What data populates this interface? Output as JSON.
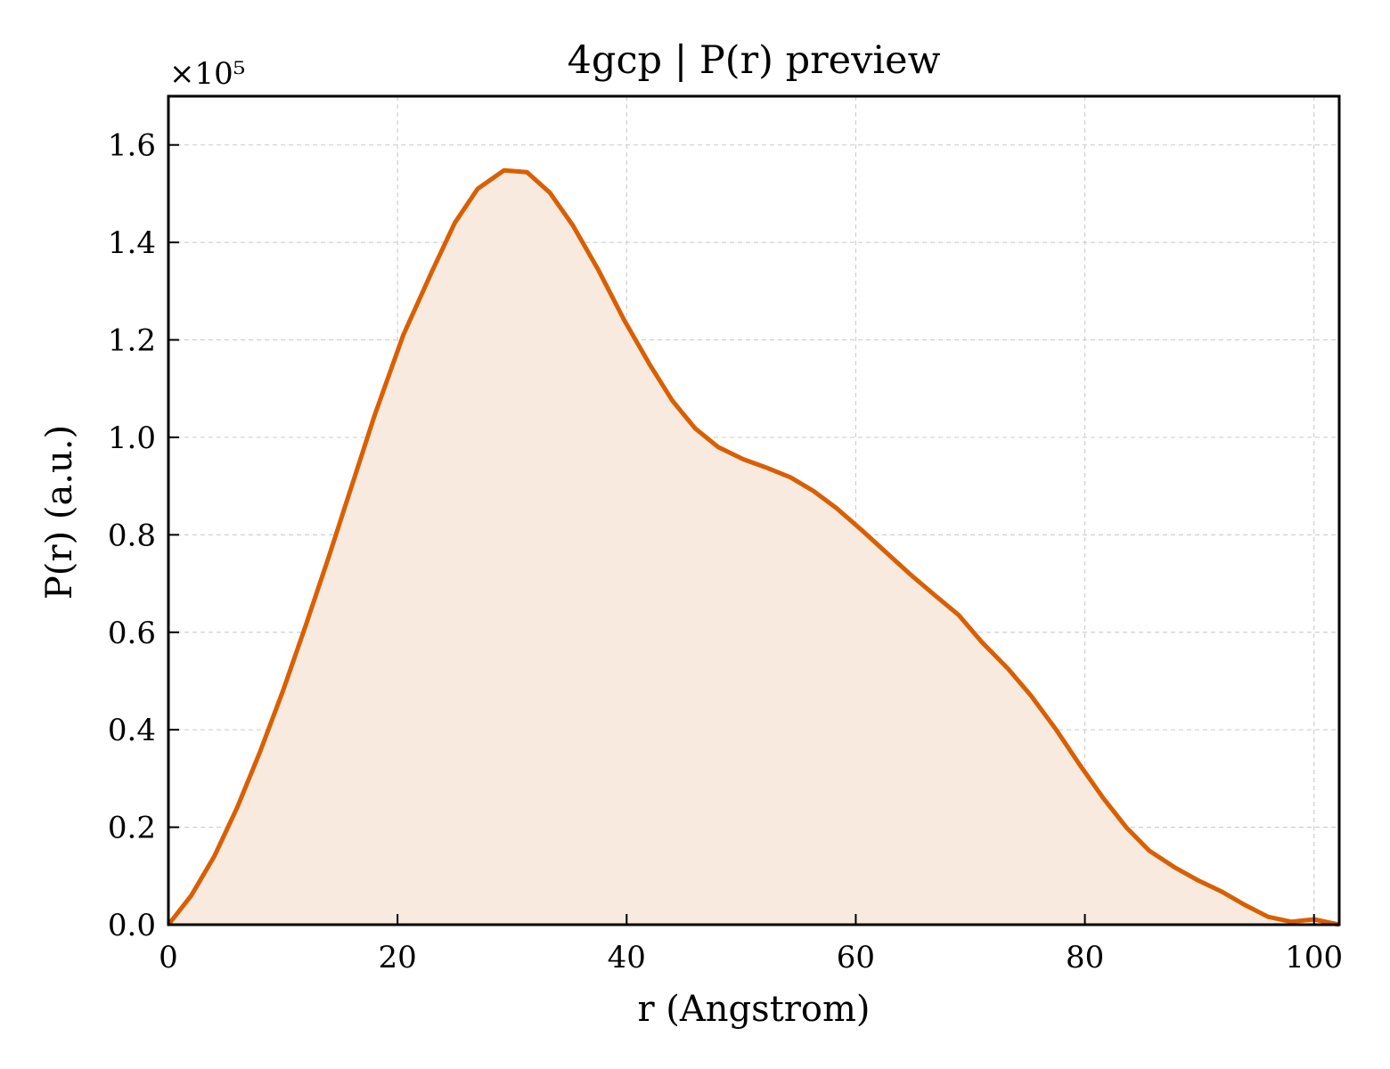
{
  "chart_data": {
    "type": "area",
    "title": "4gcp | P(r) preview",
    "xlabel": "r (Angstrom)",
    "ylabel": "P(r) (a.u.)",
    "y_multiplier_label": "×10⁵",
    "xlim": [
      0,
      102.2
    ],
    "ylim": [
      0,
      1.7
    ],
    "x_ticks": [
      0,
      20,
      40,
      60,
      80,
      100
    ],
    "x_tick_labels": [
      "0",
      "20",
      "40",
      "60",
      "80",
      "100"
    ],
    "y_ticks": [
      0,
      0.2,
      0.4,
      0.6,
      0.8,
      1.0,
      1.2,
      1.4,
      1.6
    ],
    "y_tick_labels": [
      "0.0",
      "0.2",
      "0.4",
      "0.6",
      "0.8",
      "1.0",
      "1.2",
      "1.4",
      "1.6"
    ],
    "grid": true,
    "line_color": "#d95f02",
    "fill_color": "#f8eadf",
    "series": [
      {
        "x": [
          0,
          2,
          4,
          6,
          8,
          10,
          12,
          14,
          16,
          18,
          20.5,
          23,
          25,
          27,
          29.3,
          31.3,
          33.3,
          35.3,
          37.5,
          39.8,
          42,
          44,
          46,
          48,
          50.2,
          52.3,
          54.3,
          56.3,
          58.3,
          60.5,
          62.7,
          64.7,
          66.8,
          69,
          71,
          73.3,
          75.3,
          77.5,
          79.5,
          81.6,
          83.6,
          85.6,
          87.8,
          89.8,
          92,
          94,
          96,
          98,
          100,
          102.2
        ],
        "y": [
          0.0,
          0.06,
          0.14,
          0.24,
          0.355,
          0.48,
          0.615,
          0.755,
          0.9,
          1.045,
          1.21,
          1.34,
          1.44,
          1.51,
          1.548,
          1.544,
          1.502,
          1.435,
          1.345,
          1.24,
          1.15,
          1.075,
          1.018,
          0.98,
          0.955,
          0.937,
          0.918,
          0.89,
          0.855,
          0.81,
          0.763,
          0.72,
          0.678,
          0.635,
          0.58,
          0.525,
          0.47,
          0.4,
          0.33,
          0.26,
          0.2,
          0.152,
          0.118,
          0.092,
          0.067,
          0.04,
          0.016,
          0.006,
          0.011,
          0.0
        ]
      }
    ]
  }
}
